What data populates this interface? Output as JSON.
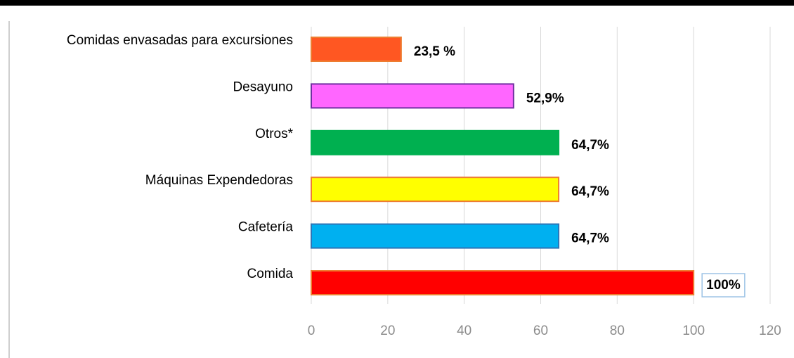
{
  "chart_data": {
    "type": "bar",
    "orientation": "horizontal",
    "categories": [
      "Comidas envasadas para excursiones",
      "Desayuno",
      "Otros*",
      "Máquinas Expendedoras",
      "Cafetería",
      "Comida"
    ],
    "values": [
      23.5,
      52.9,
      64.7,
      64.7,
      64.7,
      100
    ],
    "value_labels": [
      "23,5 %",
      "52,9%",
      "64,7%",
      "64,7%",
      "64,7%",
      "100%"
    ],
    "colors": [
      "#ff5722",
      "#ff66ff",
      "#00b050",
      "#ffff00",
      "#00b0f0",
      "#ff0000"
    ],
    "edge_colors": [
      "#ed7d31",
      "#7030a0",
      "#00b050",
      "#ed7d31",
      "#2e75b6",
      "#ed7d31"
    ],
    "xlim": [
      0,
      120
    ],
    "xticks": [
      0,
      20,
      40,
      60,
      80,
      100,
      120
    ],
    "grid": true
  }
}
